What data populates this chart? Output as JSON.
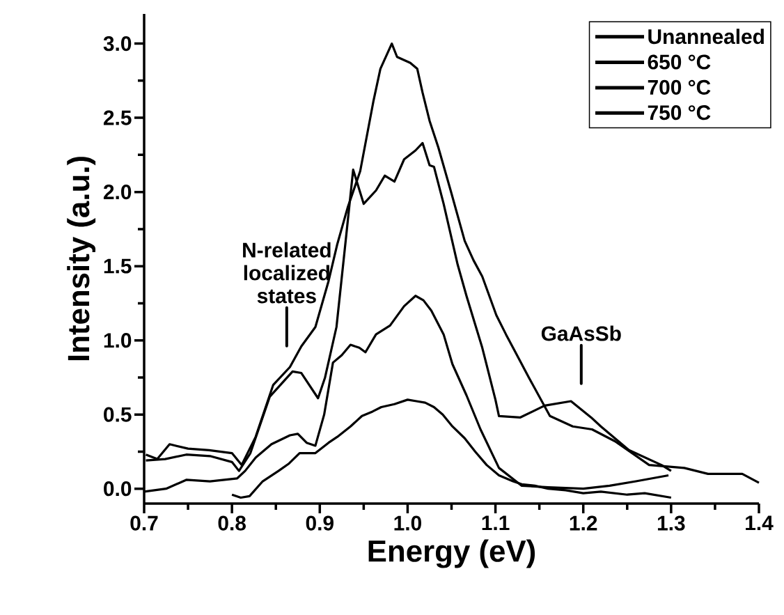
{
  "chart_data": {
    "type": "line",
    "xlabel": "Energy (eV)",
    "ylabel": "Intensity (a.u.)",
    "xlim": [
      0.7,
      1.4
    ],
    "ylim": [
      -0.1,
      3.2
    ],
    "xticks": [
      0.7,
      0.8,
      0.9,
      {
        "value": 1.0,
        "label": "1.0"
      },
      1.1,
      1.2,
      1.3,
      1.4
    ],
    "yticks": [
      {
        "value": 0,
        "label": "0.0"
      },
      0.5,
      {
        "value": 1.0,
        "label": "1.0"
      },
      1.5,
      {
        "value": 2.0,
        "label": "2.0"
      },
      2.5,
      {
        "value": 3.0,
        "label": "3.0"
      }
    ],
    "legend": "top right",
    "annotations": [
      "N-related localized states",
      "GaAsSb"
    ],
    "series": [
      {
        "name": "Unannealed",
        "color": "#000000",
        "x": [
          0.8,
          0.81,
          0.82,
          0.835,
          0.853,
          0.865,
          0.877,
          0.895,
          0.91,
          0.92,
          0.935,
          0.948,
          0.96,
          0.97,
          0.985,
          1.0,
          1.01,
          1.02,
          1.03,
          1.04,
          1.051,
          1.065,
          1.077,
          1.09,
          1.104,
          1.12,
          1.13,
          1.145,
          1.16,
          1.18,
          1.2,
          1.22,
          1.25,
          1.27,
          1.3
        ],
        "values": [
          -0.04,
          -0.06,
          -0.05,
          0.05,
          0.12,
          0.17,
          0.24,
          0.24,
          0.31,
          0.35,
          0.42,
          0.49,
          0.52,
          0.55,
          0.57,
          0.6,
          0.59,
          0.58,
          0.55,
          0.5,
          0.42,
          0.34,
          0.25,
          0.16,
          0.09,
          0.05,
          0.03,
          0.02,
          0.0,
          -0.01,
          -0.03,
          -0.02,
          -0.04,
          -0.03,
          -0.06
        ]
      },
      {
        "name": "650 °C",
        "color": "#000000",
        "x": [
          0.7,
          0.725,
          0.748,
          0.775,
          0.806,
          0.815,
          0.827,
          0.845,
          0.866,
          0.875,
          0.885,
          0.895,
          0.905,
          0.915,
          0.925,
          0.935,
          0.945,
          0.952,
          0.964,
          0.98,
          0.996,
          1.009,
          1.018,
          1.027,
          1.041,
          1.051,
          1.067,
          1.083,
          1.104,
          1.13,
          1.16,
          1.2,
          1.23,
          1.26,
          1.297
        ],
        "values": [
          -0.02,
          0.0,
          0.06,
          0.05,
          0.07,
          0.12,
          0.21,
          0.3,
          0.36,
          0.37,
          0.31,
          0.29,
          0.5,
          0.85,
          0.9,
          0.97,
          0.95,
          0.92,
          1.04,
          1.1,
          1.23,
          1.3,
          1.27,
          1.2,
          1.04,
          0.84,
          0.63,
          0.4,
          0.14,
          0.02,
          0.01,
          0.0,
          0.02,
          0.05,
          0.09
        ]
      },
      {
        "name": "700 °C",
        "color": "#000000",
        "x": [
          0.702,
          0.715,
          0.729,
          0.75,
          0.774,
          0.8,
          0.811,
          0.827,
          0.847,
          0.866,
          0.879,
          0.895,
          0.91,
          0.92,
          0.932,
          0.946,
          0.961,
          0.969,
          0.982,
          0.988,
          1.003,
          1.011,
          1.017,
          1.025,
          1.035,
          1.049,
          1.065,
          1.075,
          1.085,
          1.101,
          1.112,
          1.138,
          1.162,
          1.188,
          1.21,
          1.236,
          1.275,
          1.315,
          1.342,
          1.381,
          1.4
        ],
        "values": [
          0.23,
          0.2,
          0.3,
          0.27,
          0.26,
          0.24,
          0.16,
          0.35,
          0.7,
          0.82,
          0.96,
          1.09,
          1.4,
          1.65,
          1.9,
          2.14,
          2.61,
          2.83,
          3.0,
          2.91,
          2.87,
          2.83,
          2.67,
          2.48,
          2.3,
          2.01,
          1.67,
          1.54,
          1.43,
          1.17,
          1.04,
          0.75,
          0.49,
          0.42,
          0.4,
          0.32,
          0.16,
          0.14,
          0.1,
          0.1,
          0.04
        ]
      },
      {
        "name": "750 °C",
        "color": "#000000",
        "x": [
          0.702,
          0.724,
          0.748,
          0.775,
          0.8,
          0.808,
          0.821,
          0.843,
          0.869,
          0.879,
          0.898,
          0.906,
          0.919,
          0.93,
          0.938,
          0.95,
          0.964,
          0.974,
          0.985,
          0.996,
          1.009,
          1.017,
          1.025,
          1.03,
          1.041,
          1.057,
          1.067,
          1.085,
          1.1,
          1.104,
          1.128,
          1.156,
          1.186,
          1.209,
          1.22,
          1.252,
          1.289,
          1.3
        ],
        "values": [
          0.19,
          0.2,
          0.23,
          0.22,
          0.18,
          0.12,
          0.24,
          0.62,
          0.79,
          0.78,
          0.61,
          0.75,
          1.09,
          1.7,
          2.15,
          1.92,
          2.01,
          2.11,
          2.07,
          2.22,
          2.28,
          2.33,
          2.18,
          2.17,
          1.92,
          1.51,
          1.3,
          0.95,
          0.6,
          0.49,
          0.48,
          0.56,
          0.59,
          0.48,
          0.42,
          0.26,
          0.16,
          0.12
        ]
      }
    ]
  }
}
